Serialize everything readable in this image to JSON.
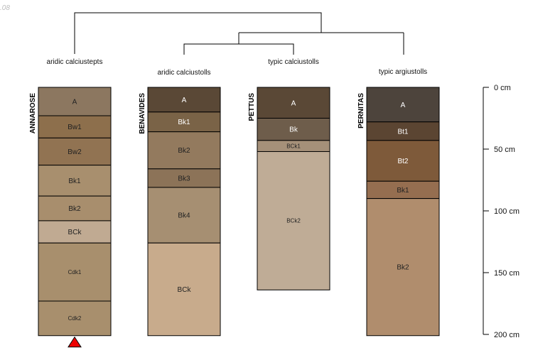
{
  "corner_label": ".08",
  "dendrogram": {
    "group_labels": [
      "aridic calciustepts",
      "aridic calciustolls",
      "typic calciustolls",
      "typic argiustolls"
    ]
  },
  "depth_scale": {
    "unit": "cm",
    "max_depth": 200,
    "ticks": [
      {
        "value": 0,
        "label": "0 cm"
      },
      {
        "value": 50,
        "label": "50 cm"
      },
      {
        "value": 100,
        "label": "100 cm"
      },
      {
        "value": 150,
        "label": "150 cm"
      },
      {
        "value": 200,
        "label": "200 cm"
      }
    ]
  },
  "profiles": [
    {
      "name": "ANNAROSE",
      "classification": "aridic calciustepts",
      "marker": "red-triangle",
      "horizons": [
        {
          "label": "A",
          "top": 0,
          "bottom": 23,
          "color": "#8c7760"
        },
        {
          "label": "Bw1",
          "top": 23,
          "bottom": 41,
          "color": "#8d6f4c"
        },
        {
          "label": "Bw2",
          "top": 41,
          "bottom": 63,
          "color": "#917352"
        },
        {
          "label": "Bk1",
          "top": 63,
          "bottom": 88,
          "color": "#a88f6e"
        },
        {
          "label": "Bk2",
          "top": 88,
          "bottom": 108,
          "color": "#a88e6d"
        },
        {
          "label": "BCk",
          "top": 108,
          "bottom": 126,
          "color": "#c0aa92"
        },
        {
          "label": "Cdk1",
          "top": 126,
          "bottom": 173,
          "color": "#a88f6d"
        },
        {
          "label": "Cdk2",
          "top": 173,
          "bottom": 201,
          "color": "#a88f6d"
        }
      ]
    },
    {
      "name": "BENAVIDES",
      "classification": "aridic calciustolls",
      "horizons": [
        {
          "label": "A",
          "top": 0,
          "bottom": 20,
          "color": "#5a4836"
        },
        {
          "label": "Bk1",
          "top": 20,
          "bottom": 36,
          "color": "#7a6347"
        },
        {
          "label": "Bk2",
          "top": 36,
          "bottom": 66,
          "color": "#937a5e"
        },
        {
          "label": "Bk3",
          "top": 66,
          "bottom": 81,
          "color": "#8c7358"
        },
        {
          "label": "Bk4",
          "top": 81,
          "bottom": 126,
          "color": "#a68f72"
        },
        {
          "label": "BCk",
          "top": 126,
          "bottom": 201,
          "color": "#c8ab8c"
        }
      ]
    },
    {
      "name": "PETTUS",
      "classification": "typic calciustolls",
      "horizons": [
        {
          "label": "A",
          "top": 0,
          "bottom": 25,
          "color": "#5a4836"
        },
        {
          "label": "Bk",
          "top": 25,
          "bottom": 43,
          "color": "#6e5d4b"
        },
        {
          "label": "BCk1",
          "top": 43,
          "bottom": 52,
          "color": "#a59079"
        },
        {
          "label": "BCk2",
          "top": 52,
          "bottom": 164,
          "color": "#bfac96"
        }
      ]
    },
    {
      "name": "PERNITAS",
      "classification": "typic argiustolls",
      "horizons": [
        {
          "label": "A",
          "top": 0,
          "bottom": 28,
          "color": "#4d443c"
        },
        {
          "label": "Bt1",
          "top": 28,
          "bottom": 43,
          "color": "#5b4532"
        },
        {
          "label": "Bt2",
          "top": 43,
          "bottom": 76,
          "color": "#7e5a3a"
        },
        {
          "label": "Bk1",
          "top": 76,
          "bottom": 90,
          "color": "#956e50"
        },
        {
          "label": "Bk2",
          "top": 90,
          "bottom": 201,
          "color": "#b08d6d"
        }
      ]
    }
  ]
}
